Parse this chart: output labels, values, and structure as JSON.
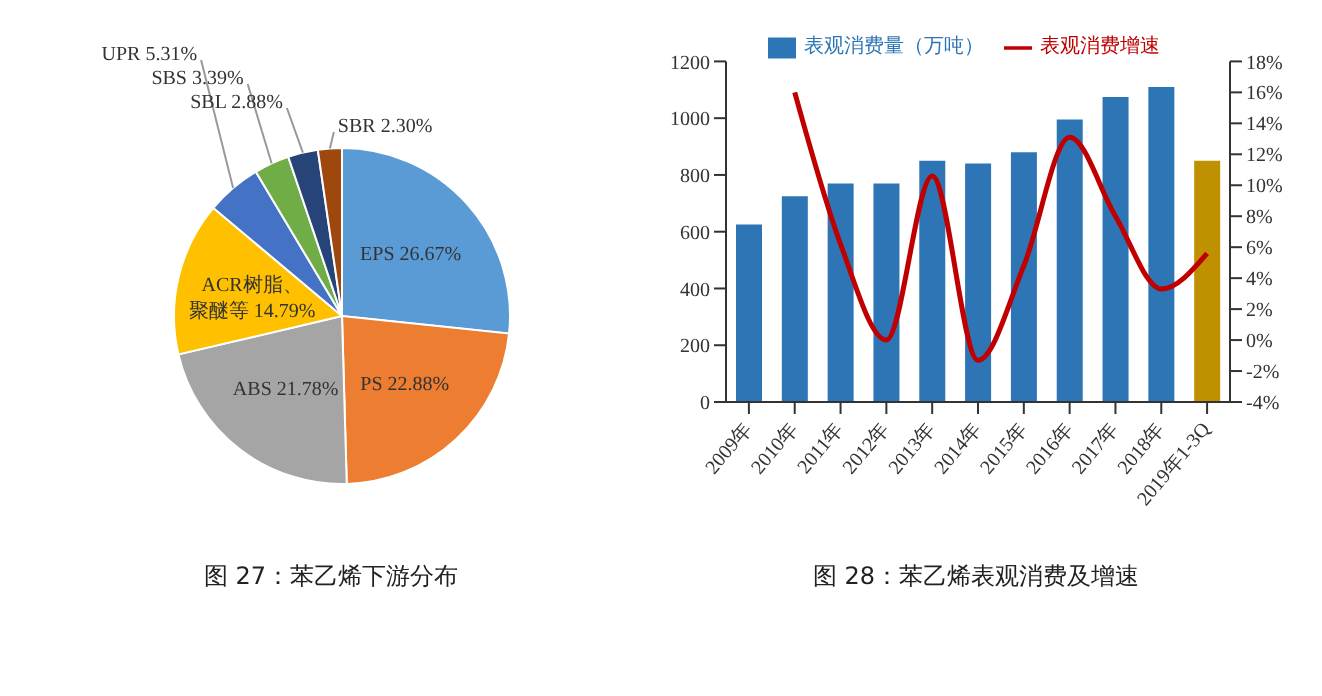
{
  "chart_data": [
    {
      "type": "pie",
      "title": "图 27：苯乙烯下游分布",
      "categories": [
        "EPS",
        "PS",
        "ABS",
        "ACR树脂、聚醚等",
        "UPR",
        "SBS",
        "SBL",
        "SBR"
      ],
      "values": [
        26.67,
        22.88,
        21.78,
        14.79,
        5.31,
        3.39,
        2.88,
        2.3
      ],
      "colors": [
        "#5b9bd5",
        "#ed7d31",
        "#a5a5a5",
        "#ffc000",
        "#4472c4",
        "#70ad47",
        "#264478",
        "#9e480e"
      ],
      "value_labels": [
        "26.67%",
        "22.88%",
        "21.78%",
        "14.79%",
        "5.31%",
        "3.39%",
        "2.88%",
        "2.30%"
      ],
      "legend": false
    },
    {
      "type": "bar",
      "title": "图 28：苯乙烯表观消费及增速",
      "categories": [
        "2009年",
        "2010年",
        "2011年",
        "2012年",
        "2013年",
        "2014年",
        "2015年",
        "2016年",
        "2017年",
        "2018年",
        "2019年1-3Q"
      ],
      "series": [
        {
          "name": "表观消费量（万吨）",
          "type": "bar",
          "color": "#2e75b6",
          "colors": [
            "#2e75b6",
            "#2e75b6",
            "#2e75b6",
            "#2e75b6",
            "#2e75b6",
            "#2e75b6",
            "#2e75b6",
            "#2e75b6",
            "#2e75b6",
            "#2e75b6",
            "#bf9000"
          ],
          "values": [
            625,
            725,
            770,
            770,
            850,
            840,
            880,
            995,
            1075,
            1110,
            850
          ]
        },
        {
          "name": "表观消费增速",
          "type": "line",
          "axis": "y2",
          "color": "#c00000",
          "values": [
            null,
            16,
            6.2,
            0,
            10.6,
            -1.3,
            4.8,
            13.1,
            8,
            3.3,
            5.6
          ]
        }
      ],
      "ylim": [
        0,
        1200
      ],
      "yticks": [
        0,
        200,
        400,
        600,
        800,
        1000,
        1200
      ],
      "y2lim": [
        -4,
        18
      ],
      "y2ticks": [
        {
          "value": -4,
          "label": "-4%"
        },
        {
          "value": -2,
          "label": "-2%"
        },
        {
          "value": 0,
          "label": "0%"
        },
        {
          "value": 2,
          "label": "2%"
        },
        {
          "value": 4,
          "label": "4%"
        },
        {
          "value": 6,
          "label": "6%"
        },
        {
          "value": 8,
          "label": "8%"
        },
        {
          "value": 10,
          "label": "10%"
        },
        {
          "value": 12,
          "label": "12%"
        },
        {
          "value": 14,
          "label": "14%"
        },
        {
          "value": 16,
          "label": "16%"
        },
        {
          "value": 18,
          "label": "18%"
        }
      ],
      "legend": "top",
      "grid": false,
      "marker": "none"
    }
  ]
}
